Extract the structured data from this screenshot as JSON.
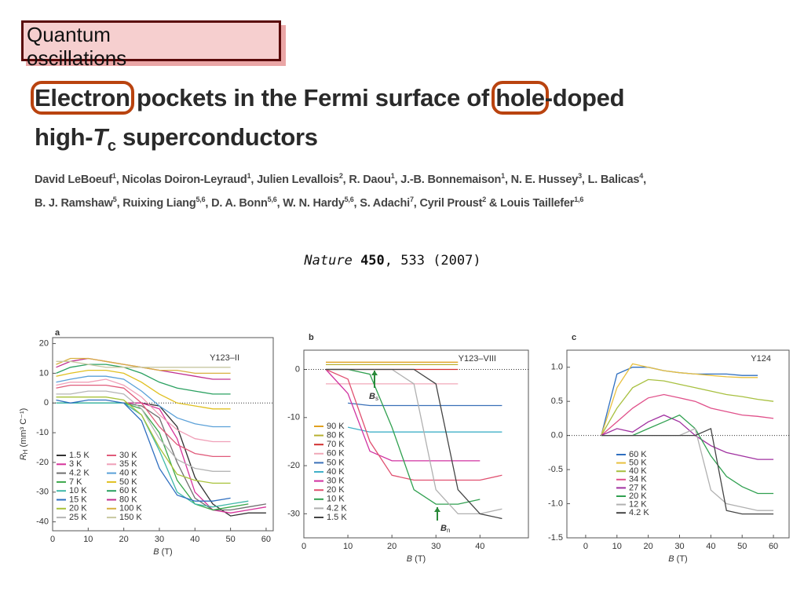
{
  "header": {
    "label": "Quantum oscillations"
  },
  "paper": {
    "title": {
      "word1": "Electron",
      "part2": " pockets in the Fermi surface of ",
      "word2": "hole",
      "part3": "-doped",
      "line2_prefix": "high-",
      "tc": "T",
      "tc_sub": "c",
      "line2_suffix": " superconductors"
    },
    "authors": [
      [
        {
          "name": "David LeBoeuf",
          "aff": "1",
          "sep": ", "
        },
        {
          "name": "Nicolas Doiron-Leyraud",
          "aff": "1",
          "sep": ", "
        },
        {
          "name": "Julien Levallois",
          "aff": "2",
          "sep": ", "
        },
        {
          "name": "R. Daou",
          "aff": "1",
          "sep": ", "
        },
        {
          "name": "J.-B. Bonnemaison",
          "aff": "1",
          "sep": ", "
        },
        {
          "name": "N. E. Hussey",
          "aff": "3",
          "sep": ", "
        },
        {
          "name": "L. Balicas",
          "aff": "4",
          "sep": ","
        }
      ],
      [
        {
          "name": "B. J. Ramshaw",
          "aff": "5",
          "sep": ", "
        },
        {
          "name": "Ruixing Liang",
          "aff": "5,6",
          "sep": ", "
        },
        {
          "name": "D. A. Bonn",
          "aff": "5,6",
          "sep": ", "
        },
        {
          "name": "W. N. Hardy",
          "aff": "5,6",
          "sep": ", "
        },
        {
          "name": "S. Adachi",
          "aff": "7",
          "sep": ", "
        },
        {
          "name": "Cyril Proust",
          "aff": "2",
          "sep": " & "
        },
        {
          "name": "Louis Taillefer",
          "aff": "1,6"
        }
      ]
    ],
    "citation": {
      "journal": "Nature",
      "volume": "450",
      "rest": ", 533 (2007)"
    }
  },
  "chart_data": [
    {
      "type": "line",
      "panel_label": "a",
      "sample": "Y123–II",
      "xlabel": {
        "symbol": "B",
        "unit": " (T)"
      },
      "ylabel": {
        "symbol": "R",
        "sub": "H",
        "unit": " (mm³ C⁻¹)"
      },
      "xlim": [
        0,
        62
      ],
      "ylim": [
        -43,
        22
      ],
      "xticks": [
        0,
        10,
        20,
        30,
        40,
        50,
        60
      ],
      "yticks": [
        -40,
        -30,
        -20,
        -10,
        0,
        10,
        20
      ],
      "x": [
        1,
        5,
        10,
        15,
        20,
        25,
        30,
        35,
        40,
        45,
        50,
        55,
        60
      ],
      "series": [
        {
          "name": "1.5 K",
          "color": "#333333",
          "values": [
            0,
            0,
            0,
            0,
            0,
            0,
            -1,
            -8,
            -25,
            -34,
            -38,
            -37,
            -37
          ]
        },
        {
          "name": "3 K",
          "color": "#d6339a",
          "values": [
            0,
            0,
            0,
            0,
            0,
            0,
            -2,
            -12,
            -30,
            -36,
            -37,
            -36,
            -35
          ]
        },
        {
          "name": "4.2 K",
          "color": "#6f6f6f",
          "values": [
            0,
            0,
            0,
            0,
            0,
            -1,
            -5,
            -20,
            -32,
            -36,
            -36,
            -35,
            -34
          ]
        },
        {
          "name": "7 K",
          "color": "#3aa84a",
          "values": [
            0,
            0,
            0,
            0,
            0,
            -2,
            -10,
            -26,
            -34,
            -36,
            -35,
            -34,
            null
          ]
        },
        {
          "name": "10 K",
          "color": "#3fb8a8",
          "values": [
            0,
            0,
            0,
            0,
            0,
            -4,
            -16,
            -30,
            -34,
            -35,
            -34,
            -33,
            null
          ]
        },
        {
          "name": "15 K",
          "color": "#2f6fc0",
          "values": [
            1,
            0,
            1,
            1,
            0,
            -6,
            -22,
            -31,
            -33,
            -33,
            -32,
            null,
            null
          ]
        },
        {
          "name": "20 K",
          "color": "#a8c23a",
          "values": [
            2,
            2,
            2,
            2,
            1,
            -4,
            -15,
            -24,
            -26,
            -27,
            -27,
            null,
            null
          ]
        },
        {
          "name": "25 K",
          "color": "#b5b5b5",
          "values": [
            3,
            3,
            4,
            4,
            3,
            -2,
            -12,
            -19,
            -22,
            -23,
            -23,
            null,
            null
          ]
        },
        {
          "name": "30 K",
          "color": "#e05a7a",
          "values": [
            5,
            6,
            6,
            6,
            5,
            0,
            -8,
            -14,
            -17,
            -18,
            -18,
            null,
            null
          ]
        },
        {
          "name": "35 K",
          "color": "#f0a0b8",
          "values": [
            6,
            7,
            7,
            8,
            6,
            2,
            -4,
            -9,
            -12,
            -13,
            -13,
            null,
            null
          ]
        },
        {
          "name": "40 K",
          "color": "#5aa0d8",
          "values": [
            7,
            8,
            9,
            9,
            8,
            4,
            -1,
            -5,
            -7,
            -8,
            -8,
            null,
            null
          ]
        },
        {
          "name": "50 K",
          "color": "#e0c020",
          "values": [
            9,
            10,
            11,
            11,
            10,
            7,
            3,
            0,
            -1,
            -2,
            -2,
            null,
            null
          ]
        },
        {
          "name": "60 K",
          "color": "#2aa060",
          "values": [
            10,
            12,
            13,
            13,
            12,
            10,
            7,
            5,
            4,
            3,
            3,
            null,
            null
          ]
        },
        {
          "name": "80 K",
          "color": "#c03090",
          "values": [
            12,
            14,
            15,
            14,
            13,
            12,
            11,
            10,
            9,
            8,
            8,
            null,
            null
          ]
        },
        {
          "name": "100 K",
          "color": "#d8b040",
          "values": [
            13,
            15,
            15,
            14,
            13,
            12,
            11,
            11,
            10,
            10,
            10,
            null,
            null
          ]
        },
        {
          "name": "150 K",
          "color": "#c8c8a0",
          "values": [
            14,
            14,
            13,
            12,
            12,
            12,
            12,
            12,
            12,
            12,
            12,
            null,
            null
          ]
        }
      ]
    },
    {
      "type": "line",
      "panel_label": "b",
      "sample": "Y123–VIII",
      "xlabel": {
        "symbol": "B",
        "unit": " (T)"
      },
      "xlim": [
        0,
        51
      ],
      "ylim": [
        -35,
        4
      ],
      "xticks": [
        0,
        10,
        20,
        30,
        40
      ],
      "yticks": [
        -30,
        -20,
        -10,
        0
      ],
      "x": [
        5,
        10,
        15,
        20,
        25,
        30,
        35,
        40,
        45
      ],
      "series": [
        {
          "name": "90 K",
          "color": "#e0a020",
          "values": [
            1.5,
            1.5,
            1.5,
            1.5,
            1.5,
            1.5,
            1.5,
            null,
            null
          ]
        },
        {
          "name": "80 K",
          "color": "#b8b030",
          "values": [
            1,
            1,
            1,
            1,
            1,
            1,
            1,
            null,
            null
          ]
        },
        {
          "name": "70 K",
          "color": "#d03030",
          "values": [
            0,
            0,
            0,
            0,
            0,
            0,
            0,
            null,
            null
          ]
        },
        {
          "name": "60 K",
          "color": "#f0a8b8",
          "values": [
            -3,
            -3,
            -3,
            -3,
            -3,
            -3,
            -3,
            null,
            null
          ]
        },
        {
          "name": "50 K",
          "color": "#3a70b8",
          "values": [
            null,
            -7,
            -7.5,
            -7.5,
            -7.5,
            -7.5,
            -7.5,
            -7.5,
            -7.5
          ]
        },
        {
          "name": "40 K",
          "color": "#40b0c8",
          "values": [
            null,
            -12,
            -13,
            -13,
            -13,
            -13,
            -13,
            -13,
            -13
          ]
        },
        {
          "name": "30 K",
          "color": "#d030a0",
          "values": [
            0,
            -5,
            -17,
            -19,
            -19,
            -19,
            -19,
            -19,
            null
          ]
        },
        {
          "name": "20 K",
          "color": "#e05070",
          "values": [
            0,
            -2,
            -15,
            -22,
            -23,
            -23,
            -23,
            -23,
            -22
          ]
        },
        {
          "name": "10 K",
          "color": "#30a050",
          "values": [
            0,
            0,
            -1,
            -12,
            -25,
            -28,
            -28,
            -27,
            null
          ]
        },
        {
          "name": "4.2 K",
          "color": "#b0b0b0",
          "values": [
            0,
            0,
            0,
            0,
            -3,
            -25,
            -30,
            -30,
            -29
          ]
        },
        {
          "name": "1.5 K",
          "color": "#444444",
          "values": [
            0,
            0,
            0,
            0,
            0,
            -3,
            -25,
            -30,
            -31
          ]
        }
      ],
      "annotations": [
        {
          "symbol": "B",
          "sub": "s"
        },
        {
          "symbol": "B",
          "sub": "n"
        }
      ]
    },
    {
      "type": "line",
      "panel_label": "c",
      "sample": "Y124",
      "xlabel": {
        "symbol": "B",
        "unit": " (T)"
      },
      "xlim": [
        -6,
        65
      ],
      "ylim": [
        -1.5,
        1.25
      ],
      "xticks": [
        0,
        10,
        20,
        30,
        40,
        50,
        60
      ],
      "yticks": [
        -1.5,
        {
          "value": -1,
          "label": "-1.0"
        },
        -0.5,
        {
          "value": 0,
          "label": "0.0"
        },
        0.5,
        {
          "value": 1,
          "label": "1.0"
        }
      ],
      "x": [
        5,
        10,
        15,
        20,
        25,
        30,
        35,
        40,
        45,
        50,
        55,
        60
      ],
      "series": [
        {
          "name": "60 K",
          "color": "#2f6fc0",
          "values": [
            0,
            0.9,
            1.0,
            1.0,
            0.95,
            0.92,
            0.9,
            0.9,
            0.9,
            0.88,
            0.88,
            null
          ]
        },
        {
          "name": "50 K",
          "color": "#e8c040",
          "values": [
            0,
            0.7,
            1.05,
            1.0,
            0.95,
            0.92,
            0.9,
            0.88,
            0.86,
            0.85,
            0.85,
            null
          ]
        },
        {
          "name": "40 K",
          "color": "#a8c040",
          "values": [
            0,
            0.4,
            0.7,
            0.82,
            0.8,
            0.75,
            0.7,
            0.65,
            0.6,
            0.57,
            0.53,
            0.5
          ]
        },
        {
          "name": "34 K",
          "color": "#e0508a",
          "values": [
            0,
            0.2,
            0.4,
            0.55,
            0.6,
            0.55,
            0.5,
            0.4,
            0.35,
            0.3,
            0.28,
            0.25
          ]
        },
        {
          "name": "27 K",
          "color": "#a030a0",
          "values": [
            0,
            0.1,
            0.05,
            0.2,
            0.3,
            0.2,
            0,
            -0.15,
            -0.25,
            -0.3,
            -0.35,
            -0.35
          ]
        },
        {
          "name": "20 K",
          "color": "#30a050",
          "values": [
            0,
            0,
            0,
            0.1,
            0.2,
            0.3,
            0.1,
            -0.3,
            -0.6,
            -0.75,
            -0.85,
            -0.85
          ]
        },
        {
          "name": "12 K",
          "color": "#b0b0b0",
          "values": [
            0,
            0,
            0,
            0,
            0,
            0,
            0.1,
            -0.8,
            -1.0,
            -1.05,
            -1.1,
            -1.1
          ]
        },
        {
          "name": "4.2 K",
          "color": "#444444",
          "values": [
            0,
            0,
            0,
            0,
            0,
            0,
            0,
            0.1,
            -1.1,
            -1.15,
            -1.15,
            -1.15
          ]
        }
      ]
    }
  ]
}
